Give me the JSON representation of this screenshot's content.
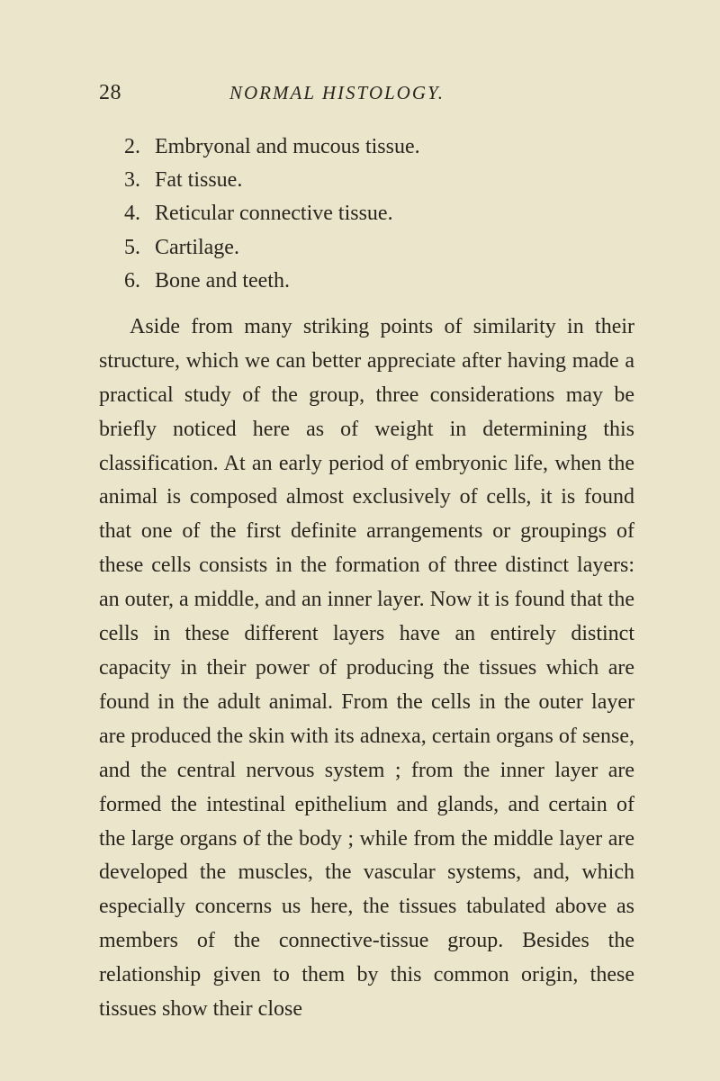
{
  "page": {
    "number": "28",
    "running_title": "NORMAL HISTOLOGY."
  },
  "list": [
    {
      "num": "2.",
      "label": "Embryonal and mucous tissue."
    },
    {
      "num": "3.",
      "label": "Fat tissue."
    },
    {
      "num": "4.",
      "label": "Reticular connective tissue."
    },
    {
      "num": "5.",
      "label": "Cartilage."
    },
    {
      "num": "6.",
      "label": "Bone and teeth."
    }
  ],
  "paragraph": "Aside from many striking points of similarity in their structure, which we can better appreciate after having made a practical study of the group, three considerations may be briefly noticed here as of weight in determining this classification. At an early period of embryonic life, when the animal is composed almost exclusively of cells, it is found that one of the first definite arrangements or group­ings of these cells consists in the formation of three distinct layers: an outer, a middle, and an inner layer. Now it is found that the cells in these dif­ferent layers have an entirely distinct capacity in their power of producing the tissues which are found in the adult animal. From the cells in the outer layer are produced the skin with its adnexa, certain organs of sense, and the central nervous system ; from the inner layer are formed the intestinal epi­thelium and glands, and certain of the large organs of the body ; while from the middle layer are de­veloped the muscles, the vascular systems, and, which especially concerns us here, the tissues tabu­lated above as members of the connective-tissue group. Besides the relationship given to them by this common origin, these tissues show their close"
}
